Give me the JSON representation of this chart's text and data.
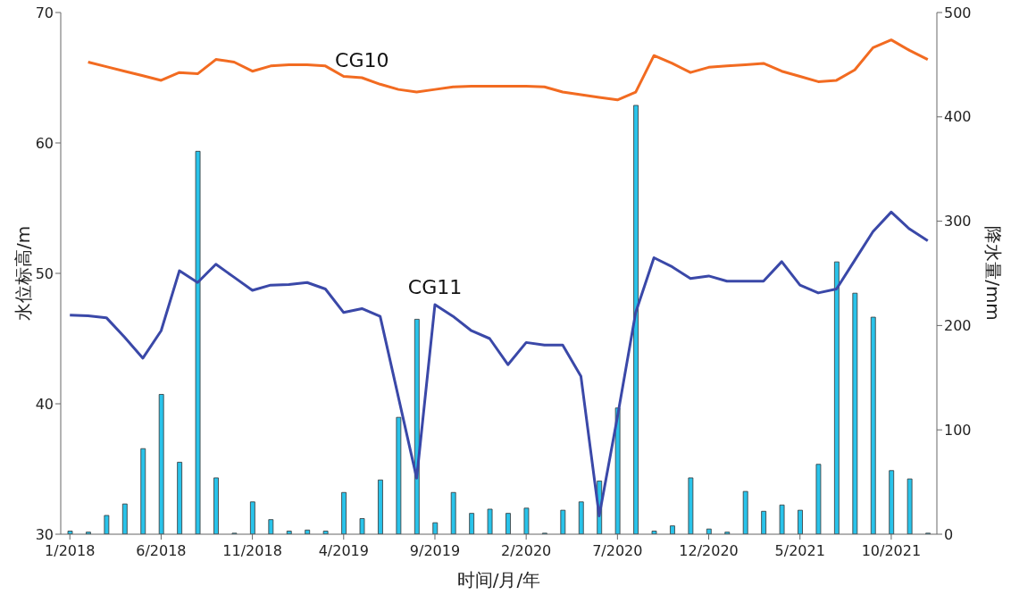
{
  "chart_data": {
    "type": "bar",
    "xlabel": "时间/月/年",
    "ylabel": "水位标高/m",
    "y2label": "降水量/mm",
    "categories": [
      "1/2018",
      null,
      null,
      null,
      null,
      "6/2018",
      null,
      null,
      null,
      null,
      "11/2018",
      null,
      null,
      null,
      null,
      "4/2019",
      null,
      null,
      null,
      null,
      "9/2019",
      null,
      null,
      null,
      null,
      "2/2020",
      null,
      null,
      null,
      null,
      "7/2020",
      null,
      null,
      null,
      null,
      "12/2020",
      null,
      null,
      null,
      null,
      "5/2021",
      null,
      null,
      null,
      null,
      "10/2021",
      null,
      null
    ],
    "series": [
      {
        "axis": "y2",
        "color": "#29c3ea",
        "values": [
          3,
          2,
          18,
          29,
          82,
          134,
          69,
          367,
          54,
          1,
          31,
          14,
          3,
          4,
          3,
          40,
          15,
          52,
          112,
          206,
          11,
          40,
          20,
          24,
          20,
          25,
          1,
          23,
          31,
          51,
          121,
          411,
          3,
          8,
          54,
          5,
          2,
          41,
          22,
          28,
          23,
          67,
          261,
          231,
          208,
          61,
          53,
          1
        ]
      },
      {
        "type": "line",
        "name": "CG10",
        "color": "#f26b21",
        "values": [
          null,
          66.2,
          65.85,
          65.5,
          65.15,
          64.8,
          65.4,
          65.3,
          66.4,
          66.2,
          65.5,
          65.9,
          66.0,
          66.0,
          65.9,
          65.1,
          65.0,
          64.5,
          64.1,
          63.9,
          64.1,
          64.3,
          64.35,
          64.35,
          64.35,
          64.35,
          64.3,
          63.9,
          63.7,
          63.5,
          63.3,
          63.9,
          66.7,
          66.1,
          65.4,
          65.8,
          65.9,
          66.0,
          66.1,
          65.5,
          65.1,
          64.7,
          64.8,
          65.6,
          67.3,
          67.9,
          67.1,
          66.4
        ]
      },
      {
        "type": "line",
        "name": "CG11",
        "color": "#3a48a8",
        "values": [
          46.8,
          46.75,
          46.6,
          45.1,
          43.5,
          45.6,
          50.2,
          49.3,
          50.7,
          49.7,
          48.7,
          49.1,
          49.15,
          49.3,
          48.8,
          47.0,
          47.3,
          46.7,
          40.5,
          34.3,
          47.6,
          46.7,
          45.6,
          45.0,
          43.0,
          44.7,
          44.5,
          44.5,
          42.1,
          31.4,
          39.0,
          47.0,
          51.2,
          50.5,
          49.6,
          49.8,
          49.4,
          49.4,
          49.4,
          50.9,
          49.1,
          48.5,
          48.8,
          51.0,
          53.2,
          54.7,
          53.4,
          52.5
        ]
      }
    ],
    "ylim": [
      30,
      70
    ],
    "yticks": [
      30,
      40,
      50,
      60,
      70
    ],
    "y2lim": [
      0,
      500
    ],
    "y2ticks": [
      0,
      100,
      200,
      300,
      400,
      500
    ]
  }
}
